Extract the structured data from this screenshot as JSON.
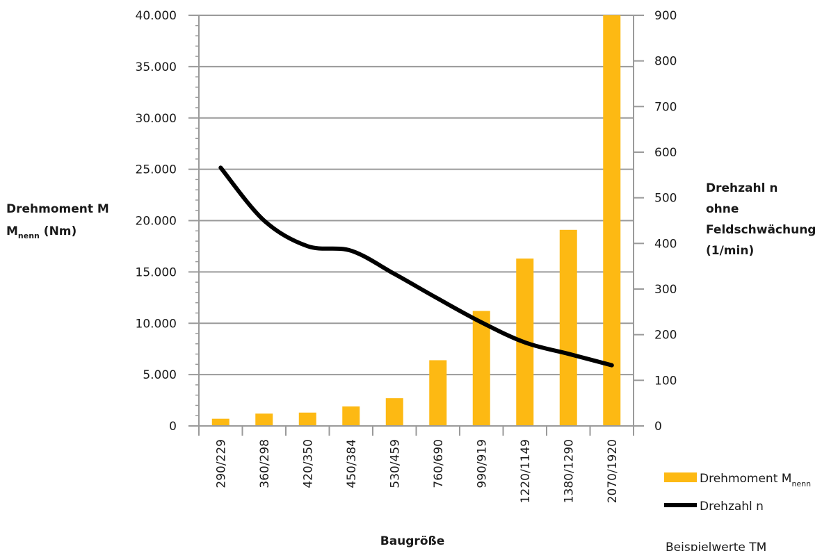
{
  "chart_data": {
    "type": "bar",
    "title": "",
    "categories": [
      "290/229",
      "360/298",
      "420/350",
      "450/384",
      "530/459",
      "760/690",
      "990/919",
      "1220/1149",
      "1380/1290",
      "2070/1920"
    ],
    "xlabel": "Baugröße",
    "ylabel": "Drehmoment M",
    "ylabel_sub": "nenn",
    "ylabel_unit": " (Nm)",
    "y2label_lines": [
      "Drehzahl n",
      "ohne",
      "Feldschwächung",
      "(1/min)"
    ],
    "ylim": [
      0,
      40000
    ],
    "y2lim": [
      0,
      900
    ],
    "yticks": [
      "0",
      "5.000",
      "10.000",
      "15.000",
      "20.000",
      "25.000",
      "30.000",
      "35.000",
      "40.000"
    ],
    "y2ticks": [
      "0",
      "100",
      "200",
      "300",
      "400",
      "500",
      "600",
      "700",
      "800",
      "900"
    ],
    "grid": true,
    "legend_position": "bottom-right",
    "series": [
      {
        "name": "Drehmoment M",
        "name_sub": "nenn",
        "type": "bar",
        "axis": "left",
        "color": "#FDB913",
        "values": [
          700,
          1200,
          1300,
          1900,
          2700,
          6400,
          11200,
          16300,
          19100,
          40000
        ]
      },
      {
        "name": "Drehzahl n",
        "type": "line",
        "axis": "right",
        "color": "#000000",
        "values": [
          566,
          450,
          394,
          384,
          333,
          279,
          227,
          183,
          158,
          133
        ]
      }
    ]
  },
  "note": "Beispielwerte TM"
}
